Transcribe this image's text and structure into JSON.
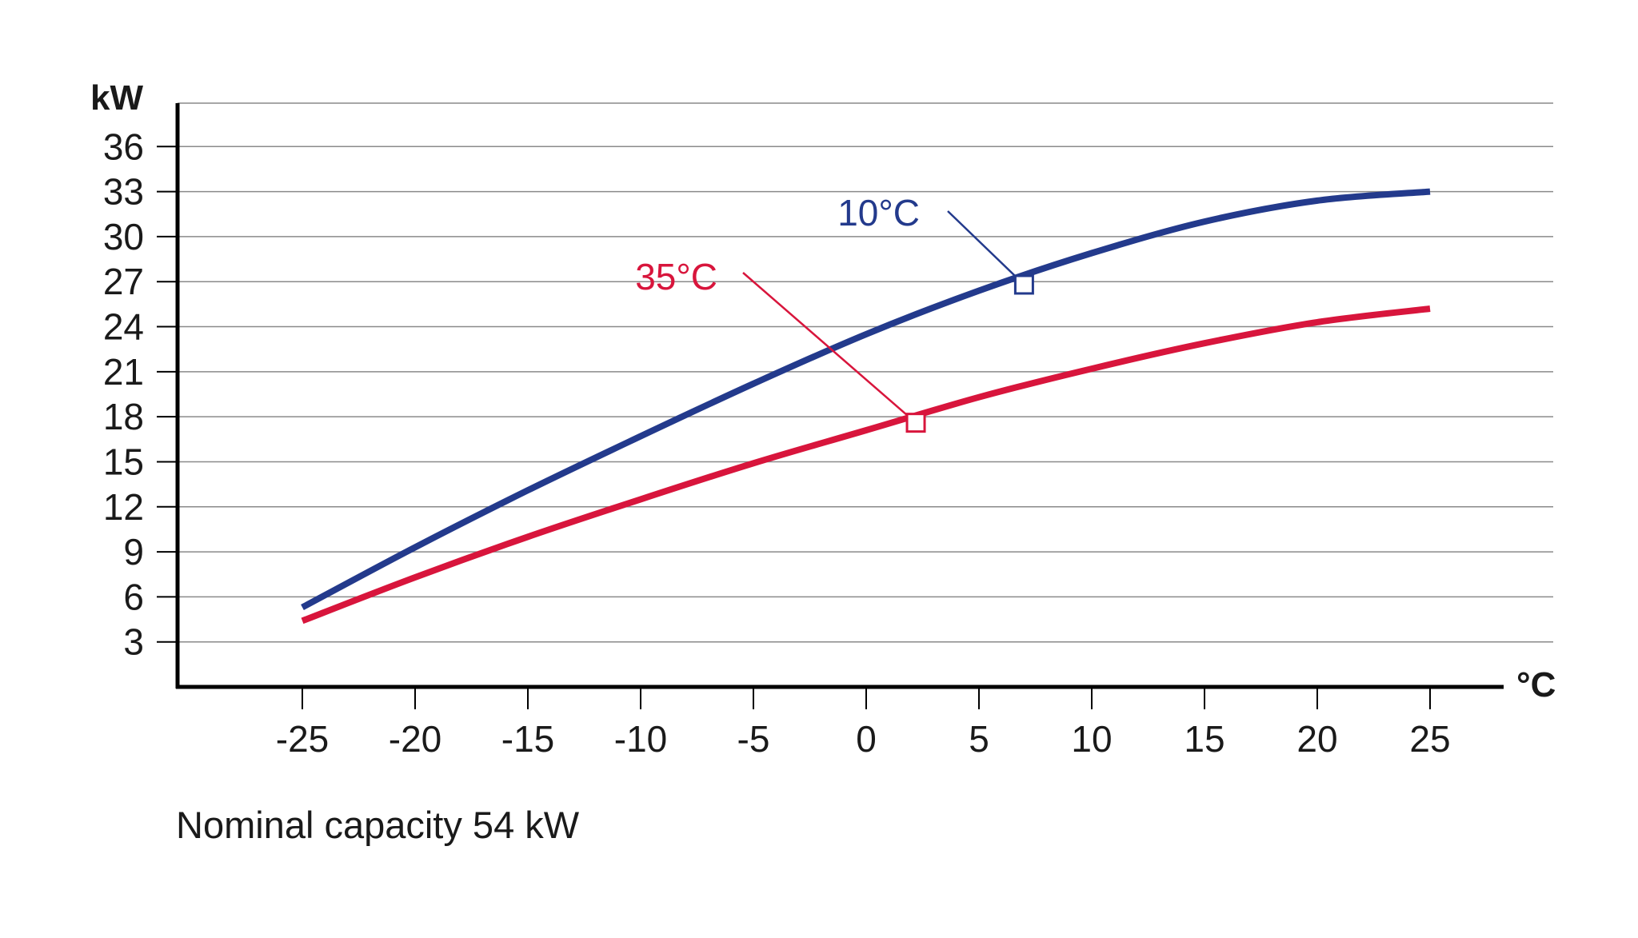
{
  "chart_data": {
    "type": "line",
    "title": "",
    "xlabel": "°C",
    "ylabel": "kW",
    "xlim": [
      -30,
      30
    ],
    "ylim": [
      0,
      39
    ],
    "x_ticks": [
      "-25",
      "-20",
      "-15",
      "-10",
      "-5",
      "0",
      "5",
      "10",
      "15",
      "20",
      "25"
    ],
    "y_ticks": [
      "3",
      "6",
      "9",
      "12",
      "15",
      "18",
      "21",
      "24",
      "27",
      "30",
      "33",
      "36"
    ],
    "grid": "horizontal",
    "series": [
      {
        "name": "10°C",
        "color": "#233a8c",
        "x": [
          -25,
          -20,
          -15,
          -10,
          -5,
          0,
          5,
          10,
          15,
          20,
          25
        ],
        "y": [
          5.3,
          9.3,
          13.1,
          16.7,
          20.2,
          23.5,
          26.4,
          28.9,
          31.0,
          32.4,
          33.0
        ],
        "marker": {
          "x": 7,
          "y": 26.8
        }
      },
      {
        "name": "35°C",
        "color": "#d8153c",
        "x": [
          -25,
          -20,
          -15,
          -10,
          -5,
          0,
          5,
          10,
          15,
          20,
          25
        ],
        "y": [
          4.4,
          7.3,
          10.0,
          12.5,
          14.9,
          17.1,
          19.3,
          21.2,
          22.9,
          24.3,
          25.2
        ],
        "marker": {
          "x": 2.2,
          "y": 17.6
        }
      }
    ]
  },
  "caption": "Nominal capacity 54 kW"
}
